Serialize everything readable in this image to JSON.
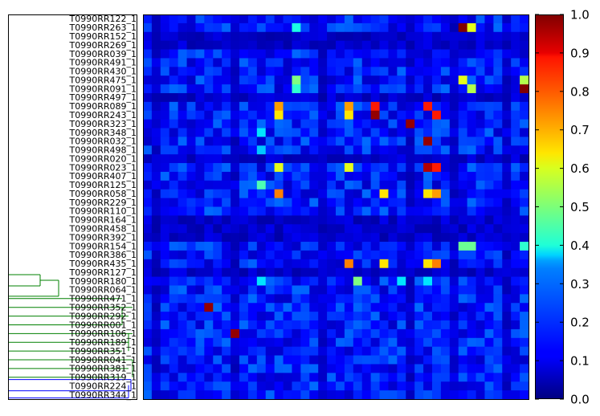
{
  "chart_data": {
    "type": "heatmap",
    "row_labels": [
      "T0990RR122_1",
      "T0990RR263_1",
      "T0990RR152_1",
      "T0990RR269_1",
      "T0990RR039_1",
      "T0990RR491_1",
      "T0990RR430_1",
      "T0990RR475_1",
      "T0990RR091_1",
      "T0990RR497_1",
      "T0990RR089_1",
      "T0990RR243_1",
      "T0990RR323_1",
      "T0990RR348_1",
      "T0990RR032_1",
      "T0990RR498_1",
      "T0990RR020_1",
      "T0990RR023_1",
      "T0990RR407_1",
      "T0990RR125_1",
      "T0990RR058_1",
      "T0990RR229_1",
      "T0990RR110_1",
      "T0990RR164_1",
      "T0990RR458_1",
      "T0990RR392_1",
      "T0990RR154_1",
      "T0990RR386_1",
      "T0990RR435_1",
      "T0990RR127_1",
      "T0990RR180_1",
      "T0990RR064_1",
      "T0990RR471_1",
      "T0990RR352_1",
      "T0990RR292_1",
      "T0990RR001_1",
      "T0990RR106_1",
      "T0990RR189_1",
      "T0990RR351_1",
      "T0990RR041_1",
      "T0990RR381_1",
      "T0990RR319_1",
      "T0990RR224_1",
      "T0990RR344_1"
    ],
    "n_columns": 44,
    "value_range": [
      0.0,
      1.0
    ],
    "colormap": "jet",
    "base_value": 0.15,
    "highlights": [
      {
        "row": 1,
        "col": 36,
        "value": 1.0
      },
      {
        "row": 1,
        "col": 37,
        "value": 0.6
      },
      {
        "row": 1,
        "col": 17,
        "value": 0.4
      },
      {
        "row": 7,
        "col": 17,
        "value": 0.5
      },
      {
        "row": 8,
        "col": 17,
        "value": 0.42
      },
      {
        "row": 7,
        "col": 36,
        "value": 0.6
      },
      {
        "row": 8,
        "col": 37,
        "value": 0.55
      },
      {
        "row": 7,
        "col": 43,
        "value": 0.55
      },
      {
        "row": 8,
        "col": 43,
        "value": 1.0
      },
      {
        "row": 10,
        "col": 15,
        "value": 0.72
      },
      {
        "row": 11,
        "col": 15,
        "value": 0.65
      },
      {
        "row": 10,
        "col": 23,
        "value": 0.72
      },
      {
        "row": 11,
        "col": 23,
        "value": 0.65
      },
      {
        "row": 10,
        "col": 26,
        "value": 0.85
      },
      {
        "row": 11,
        "col": 26,
        "value": 0.98
      },
      {
        "row": 10,
        "col": 32,
        "value": 0.85
      },
      {
        "row": 11,
        "col": 33,
        "value": 0.85
      },
      {
        "row": 12,
        "col": 30,
        "value": 0.98
      },
      {
        "row": 14,
        "col": 32,
        "value": 0.98
      },
      {
        "row": 17,
        "col": 15,
        "value": 0.6
      },
      {
        "row": 17,
        "col": 23,
        "value": 0.6
      },
      {
        "row": 17,
        "col": 32,
        "value": 0.95
      },
      {
        "row": 17,
        "col": 33,
        "value": 0.85
      },
      {
        "row": 19,
        "col": 13,
        "value": 0.45
      },
      {
        "row": 20,
        "col": 15,
        "value": 0.75
      },
      {
        "row": 20,
        "col": 27,
        "value": 0.65
      },
      {
        "row": 20,
        "col": 32,
        "value": 0.65
      },
      {
        "row": 20,
        "col": 33,
        "value": 0.72
      },
      {
        "row": 26,
        "col": 36,
        "value": 0.48
      },
      {
        "row": 26,
        "col": 37,
        "value": 0.48
      },
      {
        "row": 26,
        "col": 43,
        "value": 0.42
      },
      {
        "row": 28,
        "col": 23,
        "value": 0.75
      },
      {
        "row": 28,
        "col": 27,
        "value": 0.65
      },
      {
        "row": 28,
        "col": 32,
        "value": 0.65
      },
      {
        "row": 28,
        "col": 33,
        "value": 0.75
      },
      {
        "row": 30,
        "col": 24,
        "value": 0.5
      },
      {
        "row": 30,
        "col": 29,
        "value": 0.35
      },
      {
        "row": 30,
        "col": 32,
        "value": 0.35
      },
      {
        "row": 33,
        "col": 7,
        "value": 0.98
      },
      {
        "row": 36,
        "col": 10,
        "value": 0.98
      },
      {
        "row": 30,
        "col": 13,
        "value": 0.35
      },
      {
        "row": 13,
        "col": 13,
        "value": 0.35
      },
      {
        "row": 15,
        "col": 13,
        "value": 0.32
      }
    ],
    "colorbar_ticks": [
      0.0,
      0.1,
      0.2,
      0.3,
      0.4,
      0.5,
      0.6,
      0.7,
      0.8,
      0.9,
      1.0
    ],
    "colorbar_tick_labels": [
      "0.0",
      "0.1",
      "0.2",
      "0.3",
      "0.4",
      "0.5",
      "0.6",
      "0.7",
      "0.8",
      "0.9",
      "1.0"
    ],
    "dendrogram": {
      "visible_links": [
        {
          "color": "#008000",
          "groups": [
            "T0990RR180_1",
            "T0990RR064_1",
            "T0990RR471_1",
            "T0990RR352_1",
            "T0990RR292_1",
            "T0990RR001_1",
            "T0990RR106_1",
            "T0990RR189_1",
            "T0990RR351_1",
            "T0990RR041_1",
            "T0990RR381_1",
            "T0990RR319_1"
          ]
        },
        {
          "color": "#0000ff",
          "groups": [
            "T0990RR224_1",
            "T0990RR344_1"
          ]
        }
      ]
    },
    "title": "",
    "xlabel": "",
    "ylabel": ""
  }
}
